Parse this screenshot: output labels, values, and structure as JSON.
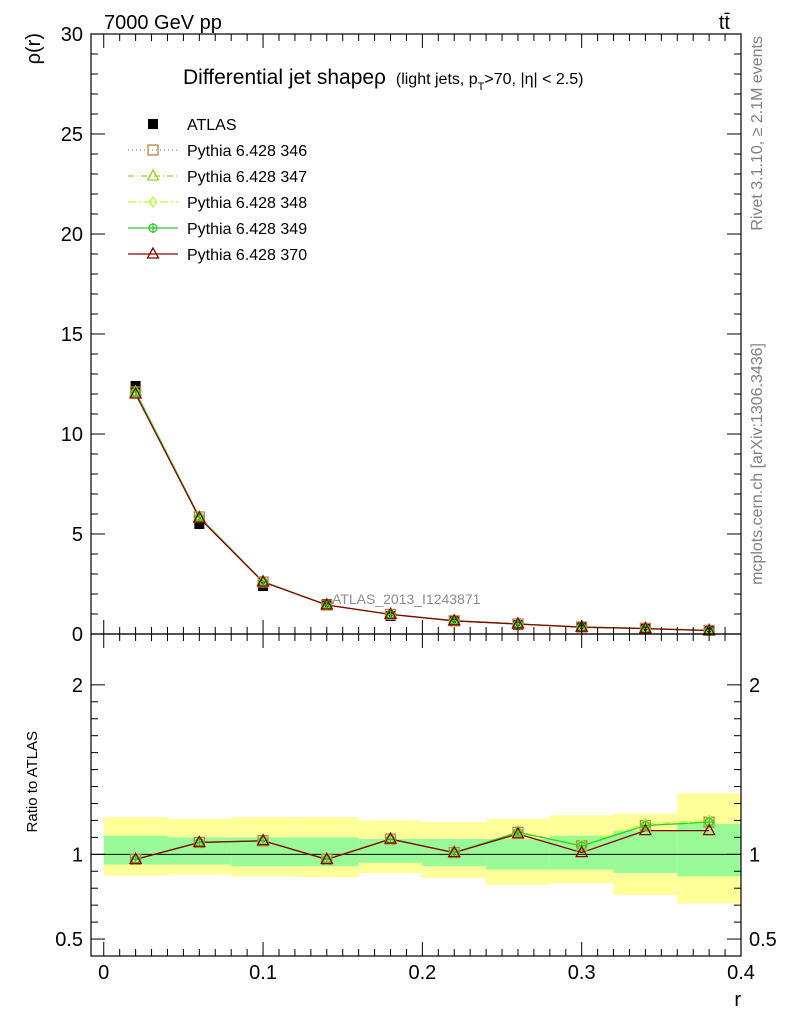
{
  "header": {
    "energy_label": "7000 GeV pp",
    "process_label": "tt̄"
  },
  "side_labels": {
    "rivet": "Rivet 3.1.10, ≥ 2.1M events",
    "mcplots": "mcplots.cern.ch [arXiv:1306.3436]"
  },
  "watermark": "ATLAS_2013_I1243871",
  "chart_data": [
    {
      "type": "line",
      "title": "Differential jet shapeρ",
      "title_suffix": "(light jets, p",
      "title_sub": "T",
      "title_suffix2": ">70, |η| < 2.5)",
      "ylabel": "ρ(r)",
      "xlim": [
        -0.008,
        0.4
      ],
      "ylim": [
        0,
        30
      ],
      "yticks": [
        0,
        5,
        10,
        15,
        20,
        25,
        30
      ],
      "ytick_labels": [
        "0",
        "5",
        "10",
        "15",
        "20",
        "25",
        "30"
      ],
      "x": [
        0.02,
        0.06,
        0.1,
        0.14,
        0.18,
        0.22,
        0.26,
        0.3,
        0.34,
        0.38
      ],
      "data": {
        "name": "ATLAS",
        "values": [
          12.4,
          5.5,
          2.4,
          1.5,
          0.9,
          0.65,
          0.45,
          0.33,
          0.25,
          0.15
        ],
        "color": "#000000"
      },
      "series": [
        {
          "name": "Pythia 6.428 346",
          "values": [
            12.1,
            5.85,
            2.6,
            1.45,
            0.98,
            0.66,
            0.5,
            0.35,
            0.28,
            0.18
          ],
          "color": "#b8864a",
          "dash": "1,3",
          "marker": "open-square"
        },
        {
          "name": "Pythia 6.428 347",
          "values": [
            12.1,
            5.85,
            2.62,
            1.45,
            0.98,
            0.66,
            0.5,
            0.35,
            0.28,
            0.18
          ],
          "color": "#9acd32",
          "dash": "6,3,1,3",
          "marker": "open-triangle"
        },
        {
          "name": "Pythia 6.428 348",
          "values": [
            12.1,
            5.85,
            2.62,
            1.45,
            0.98,
            0.66,
            0.5,
            0.35,
            0.28,
            0.18
          ],
          "color": "#adff2f",
          "dash": "8,3,2,3",
          "marker": "open-diamond"
        },
        {
          "name": "Pythia 6.428 349",
          "values": [
            12.1,
            5.85,
            2.62,
            1.45,
            0.98,
            0.66,
            0.5,
            0.35,
            0.28,
            0.18
          ],
          "color": "#32cd32",
          "dash": "",
          "marker": "open-cross"
        },
        {
          "name": "Pythia 6.428 370",
          "values": [
            12.0,
            5.8,
            2.6,
            1.45,
            0.98,
            0.66,
            0.5,
            0.34,
            0.27,
            0.17
          ],
          "color": "#8b0000",
          "dash": "",
          "marker": "open-triangle"
        }
      ],
      "legend_placement": "top-left"
    },
    {
      "type": "line",
      "ylabel": "Ratio to ATLAS",
      "xlabel": "r",
      "xlim": [
        -0.008,
        0.4
      ],
      "ylim": [
        0.4,
        2.3
      ],
      "yticks": [
        0.5,
        1,
        2
      ],
      "ytick_labels": [
        "0.5",
        "1",
        "2"
      ],
      "xticks": [
        0,
        0.1,
        0.2,
        0.3,
        0.4
      ],
      "xtick_labels": [
        "0",
        "0.1",
        "0.2",
        "0.3",
        "0.4"
      ],
      "x": [
        0.02,
        0.06,
        0.1,
        0.14,
        0.18,
        0.22,
        0.26,
        0.3,
        0.34,
        0.38
      ],
      "band_edges": [
        0.0,
        0.04,
        0.08,
        0.12,
        0.16,
        0.2,
        0.24,
        0.28,
        0.32,
        0.36,
        0.4
      ],
      "band_inner": [
        [
          0.94,
          1.11
        ],
        [
          0.94,
          1.1
        ],
        [
          0.93,
          1.1
        ],
        [
          0.93,
          1.1
        ],
        [
          0.95,
          1.09
        ],
        [
          0.93,
          1.09
        ],
        [
          0.91,
          1.09
        ],
        [
          0.91,
          1.11
        ],
        [
          0.89,
          1.14
        ],
        [
          0.87,
          1.18
        ]
      ],
      "band_outer": [
        [
          0.875,
          1.22
        ],
        [
          0.88,
          1.21
        ],
        [
          0.87,
          1.22
        ],
        [
          0.865,
          1.22
        ],
        [
          0.89,
          1.2
        ],
        [
          0.86,
          1.19
        ],
        [
          0.82,
          1.21
        ],
        [
          0.83,
          1.23
        ],
        [
          0.76,
          1.24
        ],
        [
          0.71,
          1.36
        ]
      ],
      "band_inner_color": "#98fb98",
      "band_outer_color": "#ffff99",
      "series": [
        {
          "name": "Pythia 6.428 346",
          "values": [
            0.97,
            1.07,
            1.08,
            0.97,
            1.09,
            1.01,
            1.13,
            1.05,
            1.17,
            1.19
          ],
          "color": "#b8864a",
          "dash": "1,3",
          "marker": "open-square"
        },
        {
          "name": "Pythia 6.428 347",
          "values": [
            0.97,
            1.07,
            1.08,
            0.97,
            1.09,
            1.01,
            1.13,
            1.05,
            1.17,
            1.19
          ],
          "color": "#9acd32",
          "dash": "6,3,1,3",
          "marker": "open-triangle"
        },
        {
          "name": "Pythia 6.428 348",
          "values": [
            0.97,
            1.07,
            1.08,
            0.97,
            1.09,
            1.01,
            1.13,
            1.06,
            1.18,
            1.2
          ],
          "color": "#adff2f",
          "dash": "8,3,2,3",
          "marker": "open-diamond"
        },
        {
          "name": "Pythia 6.428 349",
          "values": [
            0.97,
            1.07,
            1.08,
            0.97,
            1.09,
            1.01,
            1.13,
            1.05,
            1.17,
            1.19
          ],
          "color": "#32cd32",
          "dash": "",
          "marker": "open-cross"
        },
        {
          "name": "Pythia 6.428 370",
          "values": [
            0.97,
            1.07,
            1.08,
            0.97,
            1.09,
            1.01,
            1.12,
            1.01,
            1.14,
            1.14
          ],
          "color": "#8b0000",
          "dash": "",
          "marker": "open-triangle"
        }
      ]
    }
  ]
}
